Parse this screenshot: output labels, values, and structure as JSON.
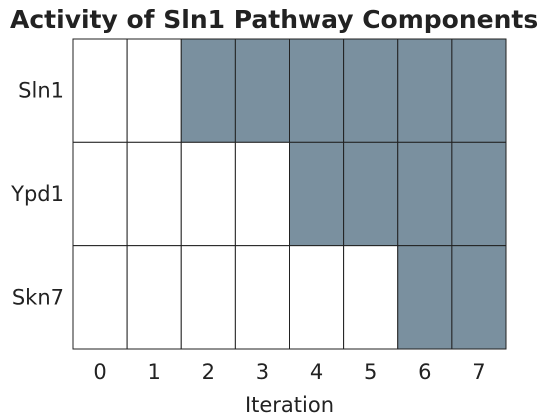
{
  "chart_data": {
    "type": "heatmap",
    "title": "Activity of Sln1 Pathway Components",
    "xlabel": "Iteration",
    "ylabel": "",
    "x": [
      "0",
      "1",
      "2",
      "3",
      "4",
      "5",
      "6",
      "7"
    ],
    "y": [
      "Sln1",
      "Ypd1",
      "Skn7"
    ],
    "values": [
      [
        0,
        0,
        1,
        1,
        1,
        1,
        1,
        1
      ],
      [
        0,
        0,
        0,
        0,
        1,
        1,
        1,
        1
      ],
      [
        0,
        0,
        0,
        0,
        0,
        0,
        1,
        1
      ]
    ],
    "colors": {
      "active": "#7a909f",
      "inactive": "#ffffff",
      "grid": "#222222"
    },
    "legend": "none"
  }
}
